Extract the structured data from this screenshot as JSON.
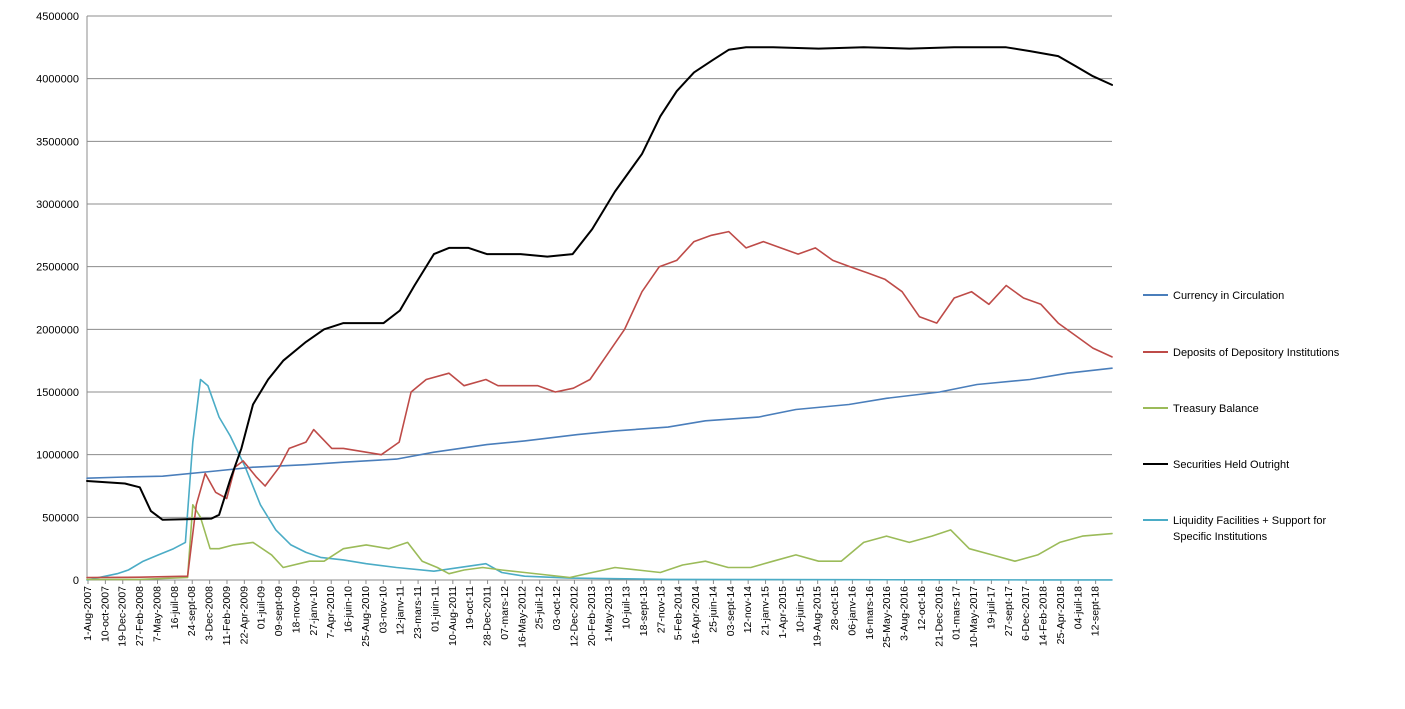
{
  "chart_data": {
    "type": "line",
    "title": "",
    "xlabel": "",
    "ylabel": "",
    "ylim": [
      0,
      4500000
    ],
    "y_ticks": [
      "0",
      "500000",
      "1000000",
      "1500000",
      "2000000",
      "2500000",
      "3000000",
      "3500000",
      "4000000",
      "4500000"
    ],
    "grid": true,
    "legend_position": "right",
    "x_start": "2007-08-01",
    "x_end": "2018-11-28",
    "x_tick_labels": [
      "1-Aug-2007",
      "10-oct-2007",
      "19-Dec-2007",
      "27-Feb-2008",
      "7-May-2008",
      "16-juil-08",
      "24-sept-08",
      "3-Dec-2008",
      "11-Feb-2009",
      "22-Apr-2009",
      "01-juil-09",
      "09-sept-09",
      "18-nov-09",
      "27-janv-10",
      "7-Apr-2010",
      "16-juin-10",
      "25-Aug-2010",
      "03-nov-10",
      "12-janv-11",
      "23-mars-11",
      "01-juin-11",
      "10-Aug-2011",
      "19-oct-11",
      "28-Dec-2011",
      "07-mars-12",
      "16-May-2012",
      "25-juil-12",
      "03-oct-12",
      "12-Dec-2012",
      "20-Feb-2013",
      "1-May-2013",
      "10-juil-13",
      "18-sept-13",
      "27-nov-13",
      "5-Feb-2014",
      "16-Apr-2014",
      "25-juin-14",
      "03-sept-14",
      "12-nov-14",
      "21-janv-15",
      "1-Apr-2015",
      "10-juin-15",
      "19-Aug-2015",
      "28-oct-15",
      "06-janv-16",
      "16-mars-16",
      "25-May-2016",
      "3-Aug-2016",
      "12-oct-16",
      "21-Dec-2016",
      "01-mars-17",
      "10-May-2017",
      "19-juil-17",
      "27-sept-17",
      "6-Dec-2017",
      "14-Feb-2018",
      "25-Apr-2018",
      "04-juil-18",
      "12-sept-18"
    ],
    "series": [
      {
        "name": "Currency in Circulation",
        "color": "#4a7ebb",
        "x": [
          "2007-08-01",
          "2008-01-01",
          "2008-06-01",
          "2009-01-01",
          "2009-06-01",
          "2010-01-01",
          "2010-06-01",
          "2011-01-01",
          "2011-06-01",
          "2012-01-01",
          "2012-06-01",
          "2013-01-01",
          "2013-06-01",
          "2014-01-01",
          "2014-06-01",
          "2015-01-01",
          "2015-06-01",
          "2016-01-01",
          "2016-06-01",
          "2017-01-01",
          "2017-06-01",
          "2018-01-01",
          "2018-06-01",
          "2018-11-28"
        ],
        "values": [
          812000,
          822000,
          828000,
          870000,
          900000,
          920000,
          940000,
          965000,
          1020000,
          1080000,
          1110000,
          1160000,
          1190000,
          1220000,
          1270000,
          1300000,
          1360000,
          1400000,
          1450000,
          1500000,
          1560000,
          1600000,
          1650000,
          1690000
        ]
      },
      {
        "name": "Deposits of Depository Institutions",
        "color": "#be4b48",
        "x": [
          "2007-08-01",
          "2008-03-01",
          "2008-09-10",
          "2008-10-15",
          "2008-11-20",
          "2009-01-01",
          "2009-02-15",
          "2009-03-20",
          "2009-04-22",
          "2009-06-15",
          "2009-07-20",
          "2009-09-15",
          "2009-10-25",
          "2010-01-01",
          "2010-02-01",
          "2010-04-15",
          "2010-06-01",
          "2010-09-01",
          "2010-11-01",
          "2011-01-12",
          "2011-03-01",
          "2011-05-01",
          "2011-08-01",
          "2011-10-01",
          "2011-12-28",
          "2012-02-15",
          "2012-05-16",
          "2012-07-25",
          "2012-10-03",
          "2012-12-15",
          "2013-02-20",
          "2013-05-01",
          "2013-07-10",
          "2013-09-18",
          "2013-11-27",
          "2014-02-05",
          "2014-04-16",
          "2014-06-25",
          "2014-09-03",
          "2014-11-12",
          "2015-01-21",
          "2015-04-01",
          "2015-06-10",
          "2015-08-19",
          "2015-10-28",
          "2016-01-06",
          "2016-03-16",
          "2016-05-25",
          "2016-08-03",
          "2016-10-12",
          "2016-12-21",
          "2017-03-01",
          "2017-05-10",
          "2017-07-19",
          "2017-09-27",
          "2017-12-06",
          "2018-02-14",
          "2018-04-25",
          "2018-07-04",
          "2018-09-12",
          "2018-11-28"
        ],
        "values": [
          20000,
          22000,
          30000,
          600000,
          850000,
          700000,
          650000,
          900000,
          950000,
          820000,
          750000,
          900000,
          1050000,
          1100000,
          1200000,
          1050000,
          1050000,
          1020000,
          1000000,
          1100000,
          1500000,
          1600000,
          1650000,
          1550000,
          1600000,
          1550000,
          1550000,
          1550000,
          1500000,
          1530000,
          1600000,
          1800000,
          2000000,
          2300000,
          2500000,
          2550000,
          2700000,
          2750000,
          2780000,
          2650000,
          2700000,
          2650000,
          2600000,
          2650000,
          2550000,
          2500000,
          2450000,
          2400000,
          2300000,
          2100000,
          2050000,
          2250000,
          2300000,
          2200000,
          2350000,
          2250000,
          2200000,
          2050000,
          1950000,
          1850000,
          1780000
        ]
      },
      {
        "name": "Treasury Balance",
        "color": "#9bbb59",
        "x": [
          "2007-08-01",
          "2008-03-01",
          "2008-09-10",
          "2008-10-01",
          "2008-11-01",
          "2008-12-10",
          "2009-01-15",
          "2009-03-15",
          "2009-06-01",
          "2009-08-15",
          "2009-10-01",
          "2010-01-15",
          "2010-03-15",
          "2010-06-01",
          "2010-09-01",
          "2010-12-01",
          "2011-02-15",
          "2011-04-15",
          "2011-06-15",
          "2011-08-01",
          "2011-10-01",
          "2011-12-15",
          "2012-03-01",
          "2012-06-01",
          "2012-09-01",
          "2012-12-01",
          "2013-03-01",
          "2013-06-01",
          "2013-09-01",
          "2013-12-01",
          "2014-03-01",
          "2014-06-01",
          "2014-09-01",
          "2014-12-01",
          "2015-03-01",
          "2015-06-01",
          "2015-09-01",
          "2015-12-01",
          "2016-03-01",
          "2016-06-01",
          "2016-09-01",
          "2016-12-01",
          "2017-02-15",
          "2017-05-01",
          "2017-08-01",
          "2017-11-01",
          "2018-02-01",
          "2018-05-01",
          "2018-08-01",
          "2018-11-28"
        ],
        "values": [
          5000,
          5000,
          20000,
          600000,
          500000,
          250000,
          250000,
          280000,
          300000,
          200000,
          100000,
          150000,
          150000,
          250000,
          280000,
          250000,
          300000,
          150000,
          100000,
          50000,
          80000,
          100000,
          80000,
          60000,
          40000,
          20000,
          60000,
          100000,
          80000,
          60000,
          120000,
          150000,
          100000,
          100000,
          150000,
          200000,
          150000,
          150000,
          300000,
          350000,
          300000,
          350000,
          400000,
          250000,
          200000,
          150000,
          200000,
          300000,
          350000,
          370000
        ]
      },
      {
        "name": "Securities Held Outright",
        "color": "#000000",
        "x": [
          "2007-08-01",
          "2008-01-01",
          "2008-03-01",
          "2008-04-15",
          "2008-06-01",
          "2008-12-15",
          "2009-01-15",
          "2009-03-01",
          "2009-04-15",
          "2009-06-01",
          "2009-08-01",
          "2009-10-01",
          "2010-01-01",
          "2010-03-15",
          "2010-06-01",
          "2010-09-01",
          "2010-11-10",
          "2011-01-15",
          "2011-03-15",
          "2011-06-01",
          "2011-08-01",
          "2011-10-19",
          "2012-01-01",
          "2012-05-16",
          "2012-09-01",
          "2012-12-12",
          "2013-03-01",
          "2013-06-01",
          "2013-09-18",
          "2013-12-01",
          "2014-02-05",
          "2014-04-16",
          "2014-07-01",
          "2014-09-03",
          "2014-11-12",
          "2015-03-01",
          "2015-09-01",
          "2016-03-01",
          "2016-09-01",
          "2017-03-01",
          "2017-09-27",
          "2018-01-01",
          "2018-04-25",
          "2018-07-04",
          "2018-09-12",
          "2018-11-28"
        ],
        "values": [
          790000,
          770000,
          740000,
          550000,
          480000,
          490000,
          520000,
          800000,
          1050000,
          1400000,
          1600000,
          1750000,
          1900000,
          2000000,
          2050000,
          2050000,
          2050000,
          2150000,
          2350000,
          2600000,
          2650000,
          2650000,
          2600000,
          2600000,
          2580000,
          2600000,
          2800000,
          3100000,
          3400000,
          3700000,
          3900000,
          4050000,
          4150000,
          4230000,
          4250000,
          4250000,
          4240000,
          4250000,
          4240000,
          4250000,
          4250000,
          4220000,
          4180000,
          4100000,
          4020000,
          3950000
        ]
      },
      {
        "name": "Liquidity Facilities + Support for Specific Institutions",
        "color": "#4bacc6",
        "x": [
          "2007-08-01",
          "2007-12-01",
          "2008-01-15",
          "2008-03-15",
          "2008-05-15",
          "2008-07-15",
          "2008-09-01",
          "2008-10-01",
          "2008-11-01",
          "2008-12-01",
          "2009-01-15",
          "2009-03-01",
          "2009-05-01",
          "2009-07-01",
          "2009-09-01",
          "2009-11-01",
          "2010-01-01",
          "2010-03-01",
          "2010-06-01",
          "2010-09-01",
          "2011-01-01",
          "2011-06-01",
          "2011-12-28",
          "2012-03-01",
          "2012-06-01",
          "2012-12-01",
          "2013-06-01",
          "2014-01-01",
          "2015-01-01",
          "2016-01-01",
          "2017-01-01",
          "2018-01-01",
          "2018-11-28"
        ],
        "values": [
          0,
          50000,
          80000,
          150000,
          200000,
          250000,
          300000,
          1100000,
          1600000,
          1550000,
          1300000,
          1150000,
          900000,
          600000,
          400000,
          280000,
          220000,
          180000,
          160000,
          130000,
          100000,
          70000,
          130000,
          60000,
          30000,
          15000,
          10000,
          5000,
          3000,
          2000,
          1500,
          1000,
          500
        ]
      }
    ]
  }
}
